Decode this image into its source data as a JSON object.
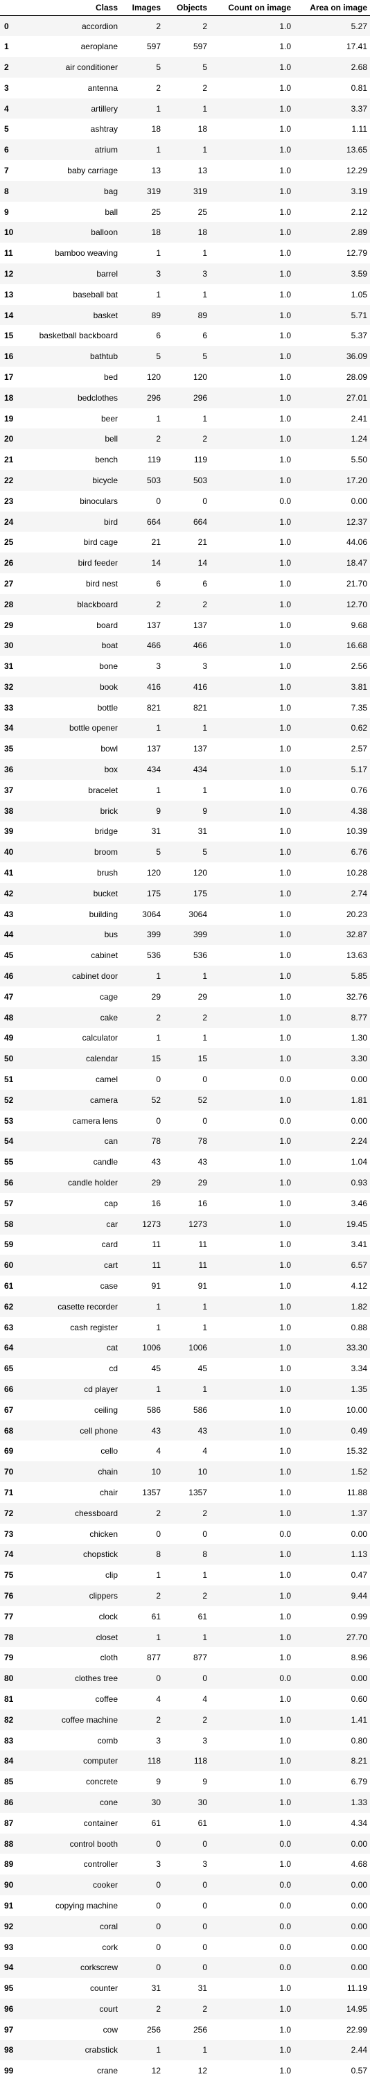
{
  "table": {
    "columns": [
      "",
      "Class",
      "Images",
      "Objects",
      "Count on image",
      "Area on image"
    ],
    "rows": [
      [
        "0",
        "accordion",
        "2",
        "2",
        "1.0",
        "5.27"
      ],
      [
        "1",
        "aeroplane",
        "597",
        "597",
        "1.0",
        "17.41"
      ],
      [
        "2",
        "air conditioner",
        "5",
        "5",
        "1.0",
        "2.68"
      ],
      [
        "3",
        "antenna",
        "2",
        "2",
        "1.0",
        "0.81"
      ],
      [
        "4",
        "artillery",
        "1",
        "1",
        "1.0",
        "3.37"
      ],
      [
        "5",
        "ashtray",
        "18",
        "18",
        "1.0",
        "1.11"
      ],
      [
        "6",
        "atrium",
        "1",
        "1",
        "1.0",
        "13.65"
      ],
      [
        "7",
        "baby carriage",
        "13",
        "13",
        "1.0",
        "12.29"
      ],
      [
        "8",
        "bag",
        "319",
        "319",
        "1.0",
        "3.19"
      ],
      [
        "9",
        "ball",
        "25",
        "25",
        "1.0",
        "2.12"
      ],
      [
        "10",
        "balloon",
        "18",
        "18",
        "1.0",
        "2.89"
      ],
      [
        "11",
        "bamboo weaving",
        "1",
        "1",
        "1.0",
        "12.79"
      ],
      [
        "12",
        "barrel",
        "3",
        "3",
        "1.0",
        "3.59"
      ],
      [
        "13",
        "baseball bat",
        "1",
        "1",
        "1.0",
        "1.05"
      ],
      [
        "14",
        "basket",
        "89",
        "89",
        "1.0",
        "5.71"
      ],
      [
        "15",
        "basketball backboard",
        "6",
        "6",
        "1.0",
        "5.37"
      ],
      [
        "16",
        "bathtub",
        "5",
        "5",
        "1.0",
        "36.09"
      ],
      [
        "17",
        "bed",
        "120",
        "120",
        "1.0",
        "28.09"
      ],
      [
        "18",
        "bedclothes",
        "296",
        "296",
        "1.0",
        "27.01"
      ],
      [
        "19",
        "beer",
        "1",
        "1",
        "1.0",
        "2.41"
      ],
      [
        "20",
        "bell",
        "2",
        "2",
        "1.0",
        "1.24"
      ],
      [
        "21",
        "bench",
        "119",
        "119",
        "1.0",
        "5.50"
      ],
      [
        "22",
        "bicycle",
        "503",
        "503",
        "1.0",
        "17.20"
      ],
      [
        "23",
        "binoculars",
        "0",
        "0",
        "0.0",
        "0.00"
      ],
      [
        "24",
        "bird",
        "664",
        "664",
        "1.0",
        "12.37"
      ],
      [
        "25",
        "bird cage",
        "21",
        "21",
        "1.0",
        "44.06"
      ],
      [
        "26",
        "bird feeder",
        "14",
        "14",
        "1.0",
        "18.47"
      ],
      [
        "27",
        "bird nest",
        "6",
        "6",
        "1.0",
        "21.70"
      ],
      [
        "28",
        "blackboard",
        "2",
        "2",
        "1.0",
        "12.70"
      ],
      [
        "29",
        "board",
        "137",
        "137",
        "1.0",
        "9.68"
      ],
      [
        "30",
        "boat",
        "466",
        "466",
        "1.0",
        "16.68"
      ],
      [
        "31",
        "bone",
        "3",
        "3",
        "1.0",
        "2.56"
      ],
      [
        "32",
        "book",
        "416",
        "416",
        "1.0",
        "3.81"
      ],
      [
        "33",
        "bottle",
        "821",
        "821",
        "1.0",
        "7.35"
      ],
      [
        "34",
        "bottle opener",
        "1",
        "1",
        "1.0",
        "0.62"
      ],
      [
        "35",
        "bowl",
        "137",
        "137",
        "1.0",
        "2.57"
      ],
      [
        "36",
        "box",
        "434",
        "434",
        "1.0",
        "5.17"
      ],
      [
        "37",
        "bracelet",
        "1",
        "1",
        "1.0",
        "0.76"
      ],
      [
        "38",
        "brick",
        "9",
        "9",
        "1.0",
        "4.38"
      ],
      [
        "39",
        "bridge",
        "31",
        "31",
        "1.0",
        "10.39"
      ],
      [
        "40",
        "broom",
        "5",
        "5",
        "1.0",
        "6.76"
      ],
      [
        "41",
        "brush",
        "120",
        "120",
        "1.0",
        "10.28"
      ],
      [
        "42",
        "bucket",
        "175",
        "175",
        "1.0",
        "2.74"
      ],
      [
        "43",
        "building",
        "3064",
        "3064",
        "1.0",
        "20.23"
      ],
      [
        "44",
        "bus",
        "399",
        "399",
        "1.0",
        "32.87"
      ],
      [
        "45",
        "cabinet",
        "536",
        "536",
        "1.0",
        "13.63"
      ],
      [
        "46",
        "cabinet door",
        "1",
        "1",
        "1.0",
        "5.85"
      ],
      [
        "47",
        "cage",
        "29",
        "29",
        "1.0",
        "32.76"
      ],
      [
        "48",
        "cake",
        "2",
        "2",
        "1.0",
        "8.77"
      ],
      [
        "49",
        "calculator",
        "1",
        "1",
        "1.0",
        "1.30"
      ],
      [
        "50",
        "calendar",
        "15",
        "15",
        "1.0",
        "3.30"
      ],
      [
        "51",
        "camel",
        "0",
        "0",
        "0.0",
        "0.00"
      ],
      [
        "52",
        "camera",
        "52",
        "52",
        "1.0",
        "1.81"
      ],
      [
        "53",
        "camera lens",
        "0",
        "0",
        "0.0",
        "0.00"
      ],
      [
        "54",
        "can",
        "78",
        "78",
        "1.0",
        "2.24"
      ],
      [
        "55",
        "candle",
        "43",
        "43",
        "1.0",
        "1.04"
      ],
      [
        "56",
        "candle holder",
        "29",
        "29",
        "1.0",
        "0.93"
      ],
      [
        "57",
        "cap",
        "16",
        "16",
        "1.0",
        "3.46"
      ],
      [
        "58",
        "car",
        "1273",
        "1273",
        "1.0",
        "19.45"
      ],
      [
        "59",
        "card",
        "11",
        "11",
        "1.0",
        "3.41"
      ],
      [
        "60",
        "cart",
        "11",
        "11",
        "1.0",
        "6.57"
      ],
      [
        "61",
        "case",
        "91",
        "91",
        "1.0",
        "4.12"
      ],
      [
        "62",
        "casette recorder",
        "1",
        "1",
        "1.0",
        "1.82"
      ],
      [
        "63",
        "cash register",
        "1",
        "1",
        "1.0",
        "0.88"
      ],
      [
        "64",
        "cat",
        "1006",
        "1006",
        "1.0",
        "33.30"
      ],
      [
        "65",
        "cd",
        "45",
        "45",
        "1.0",
        "3.34"
      ],
      [
        "66",
        "cd player",
        "1",
        "1",
        "1.0",
        "1.35"
      ],
      [
        "67",
        "ceiling",
        "586",
        "586",
        "1.0",
        "10.00"
      ],
      [
        "68",
        "cell phone",
        "43",
        "43",
        "1.0",
        "0.49"
      ],
      [
        "69",
        "cello",
        "4",
        "4",
        "1.0",
        "15.32"
      ],
      [
        "70",
        "chain",
        "10",
        "10",
        "1.0",
        "1.52"
      ],
      [
        "71",
        "chair",
        "1357",
        "1357",
        "1.0",
        "11.88"
      ],
      [
        "72",
        "chessboard",
        "2",
        "2",
        "1.0",
        "1.37"
      ],
      [
        "73",
        "chicken",
        "0",
        "0",
        "0.0",
        "0.00"
      ],
      [
        "74",
        "chopstick",
        "8",
        "8",
        "1.0",
        "1.13"
      ],
      [
        "75",
        "clip",
        "1",
        "1",
        "1.0",
        "0.47"
      ],
      [
        "76",
        "clippers",
        "2",
        "2",
        "1.0",
        "9.44"
      ],
      [
        "77",
        "clock",
        "61",
        "61",
        "1.0",
        "0.99"
      ],
      [
        "78",
        "closet",
        "1",
        "1",
        "1.0",
        "27.70"
      ],
      [
        "79",
        "cloth",
        "877",
        "877",
        "1.0",
        "8.96"
      ],
      [
        "80",
        "clothes tree",
        "0",
        "0",
        "0.0",
        "0.00"
      ],
      [
        "81",
        "coffee",
        "4",
        "4",
        "1.0",
        "0.60"
      ],
      [
        "82",
        "coffee machine",
        "2",
        "2",
        "1.0",
        "1.41"
      ],
      [
        "83",
        "comb",
        "3",
        "3",
        "1.0",
        "0.80"
      ],
      [
        "84",
        "computer",
        "118",
        "118",
        "1.0",
        "8.21"
      ],
      [
        "85",
        "concrete",
        "9",
        "9",
        "1.0",
        "6.79"
      ],
      [
        "86",
        "cone",
        "30",
        "30",
        "1.0",
        "1.33"
      ],
      [
        "87",
        "container",
        "61",
        "61",
        "1.0",
        "4.34"
      ],
      [
        "88",
        "control booth",
        "0",
        "0",
        "0.0",
        "0.00"
      ],
      [
        "89",
        "controller",
        "3",
        "3",
        "1.0",
        "4.68"
      ],
      [
        "90",
        "cooker",
        "0",
        "0",
        "0.0",
        "0.00"
      ],
      [
        "91",
        "copying machine",
        "0",
        "0",
        "0.0",
        "0.00"
      ],
      [
        "92",
        "coral",
        "0",
        "0",
        "0.0",
        "0.00"
      ],
      [
        "93",
        "cork",
        "0",
        "0",
        "0.0",
        "0.00"
      ],
      [
        "94",
        "corkscrew",
        "0",
        "0",
        "0.0",
        "0.00"
      ],
      [
        "95",
        "counter",
        "31",
        "31",
        "1.0",
        "11.19"
      ],
      [
        "96",
        "court",
        "2",
        "2",
        "1.0",
        "14.95"
      ],
      [
        "97",
        "cow",
        "256",
        "256",
        "1.0",
        "22.99"
      ],
      [
        "98",
        "crabstick",
        "1",
        "1",
        "1.0",
        "2.44"
      ],
      [
        "99",
        "crane",
        "12",
        "12",
        "1.0",
        "0.57"
      ]
    ]
  }
}
